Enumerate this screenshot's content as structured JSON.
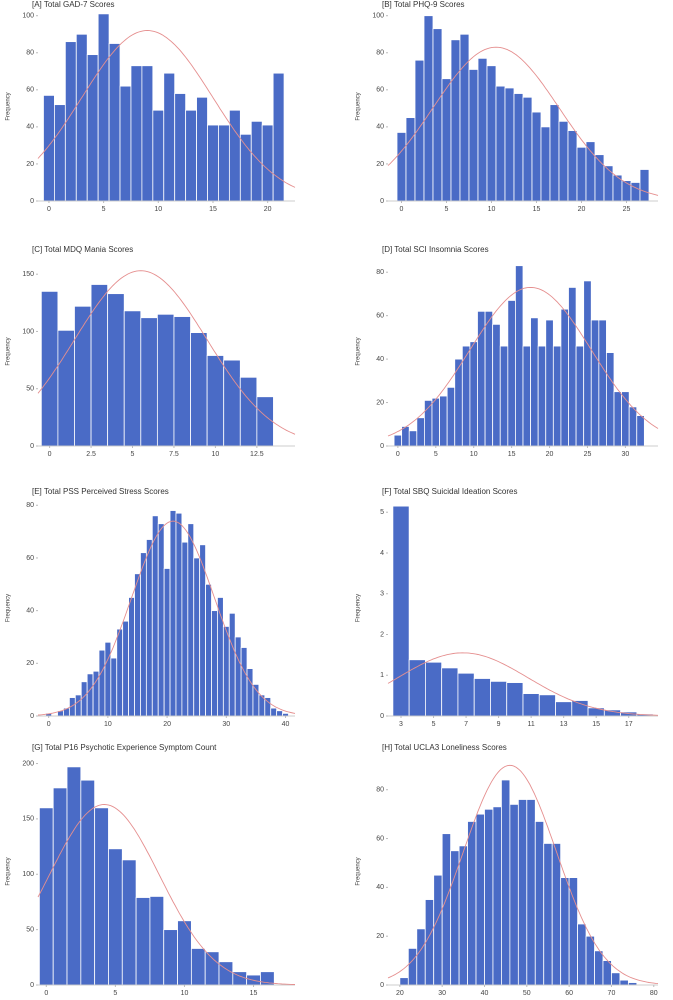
{
  "chart_data": [
    {
      "type": "histogram",
      "title": "[A] Total GAD-7 Scores",
      "ylabel": "Frequency",
      "color": "#4a6bc6",
      "bins": [
        -0.5,
        0.5,
        1.5,
        2.5,
        3.5,
        4.5,
        5.5,
        6.5,
        7.5,
        8.5,
        9.5,
        10.5,
        11.5,
        12.5,
        13.5,
        14.5,
        15.5,
        16.5,
        17.5,
        18.5,
        19.5,
        20.5,
        21.5
      ],
      "values": [
        57,
        52,
        86,
        90,
        79,
        101,
        85,
        62,
        73,
        73,
        49,
        69,
        58,
        49,
        56,
        41,
        41,
        49,
        36,
        43,
        41,
        69
      ],
      "xlim": [
        -1,
        22.5
      ],
      "ylim": [
        0,
        102
      ],
      "xticks": [
        0,
        5,
        10,
        15,
        20
      ],
      "yticks": [
        0,
        20,
        40,
        60,
        80,
        100
      ],
      "normal_fit": {
        "mean": 9,
        "sd": 6,
        "peak": 92,
        "color": "#e58f8f"
      }
    },
    {
      "type": "histogram",
      "title": "[B] Total PHQ-9 Scores",
      "ylabel": "Frequency",
      "color": "#4a6bc6",
      "bins": [
        -0.5,
        0.5,
        1.5,
        2.5,
        3.5,
        4.5,
        5.5,
        6.5,
        7.5,
        8.5,
        9.5,
        10.5,
        11.5,
        12.5,
        13.5,
        14.5,
        15.5,
        16.5,
        17.5,
        18.5,
        19.5,
        20.5,
        21.5,
        22.5,
        23.5,
        24.5,
        25.5,
        26.5,
        27.5
      ],
      "values": [
        37,
        45,
        76,
        100,
        93,
        66,
        87,
        90,
        71,
        77,
        73,
        62,
        61,
        58,
        56,
        48,
        40,
        52,
        43,
        38,
        29,
        32,
        25,
        19,
        14,
        11,
        10,
        17
      ],
      "xlim": [
        -1.5,
        28.5
      ],
      "ylim": [
        0,
        102
      ],
      "xticks": [
        0,
        5,
        10,
        15,
        20,
        25
      ],
      "yticks": [
        0,
        20,
        40,
        60,
        80,
        100
      ],
      "normal_fit": {
        "mean": 10.5,
        "sd": 7,
        "peak": 83,
        "color": "#e58f8f"
      }
    },
    {
      "type": "histogram",
      "title": "[C] Total MDQ Mania Scores",
      "ylabel": "Frequency",
      "color": "#4a6bc6",
      "bins": [
        -0.5,
        0.5,
        1.5,
        2.5,
        3.5,
        4.5,
        5.5,
        6.5,
        7.5,
        8.5,
        9.5,
        10.5,
        11.5,
        12.5,
        13.5
      ],
      "values": [
        135,
        101,
        122,
        141,
        133,
        118,
        112,
        115,
        113,
        99,
        79,
        75,
        60,
        43
      ],
      "xlim": [
        -0.7,
        14.8
      ],
      "ylim": [
        0,
        165
      ],
      "xticks": [
        0,
        2.5,
        5,
        7.5,
        10,
        12.5
      ],
      "yticks": [
        0,
        50,
        100,
        150
      ],
      "normal_fit": {
        "mean": 5.5,
        "sd": 4,
        "peak": 153,
        "color": "#e58f8f"
      }
    },
    {
      "type": "histogram",
      "title": "[D] Total SCI Insomnia Scores",
      "ylabel": "Frequency",
      "color": "#4a6bc6",
      "bins": [
        -0.5,
        0.5,
        1.5,
        2.5,
        3.5,
        4.5,
        5.5,
        6.5,
        7.5,
        8.5,
        9.5,
        10.5,
        11.5,
        12.5,
        13.5,
        14.5,
        15.5,
        16.5,
        17.5,
        18.5,
        19.5,
        20.5,
        21.5,
        22.5,
        23.5,
        24.5,
        25.5,
        26.5,
        27.5,
        28.5,
        29.5,
        30.5,
        31.5,
        32.5
      ],
      "values": [
        5,
        9,
        7,
        13,
        21,
        22,
        23,
        27,
        40,
        46,
        48,
        62,
        62,
        56,
        46,
        67,
        83,
        46,
        59,
        46,
        58,
        46,
        63,
        73,
        46,
        76,
        58,
        58,
        43,
        25,
        25,
        18,
        14
      ],
      "xlim": [
        -1.3,
        34.3
      ],
      "ylim": [
        0,
        87
      ],
      "xticks": [
        0,
        5,
        10,
        15,
        20,
        25,
        30
      ],
      "yticks": [
        0,
        20,
        40,
        60,
        80
      ],
      "normal_fit": {
        "mean": 17.5,
        "sd": 8,
        "peak": 73,
        "color": "#e58f8f"
      }
    },
    {
      "type": "histogram",
      "title": "[E] Total PSS Perceived Stress Scores",
      "ylabel": "Frequency",
      "color": "#4a6bc6",
      "bins": [
        -0.5,
        0.5,
        1.5,
        2.5,
        3.5,
        4.5,
        5.5,
        6.5,
        7.5,
        8.5,
        9.5,
        10.5,
        11.5,
        12.5,
        13.5,
        14.5,
        15.5,
        16.5,
        17.5,
        18.5,
        19.5,
        20.5,
        21.5,
        22.5,
        23.5,
        24.5,
        25.5,
        26.5,
        27.5,
        28.5,
        29.5,
        30.5,
        31.5,
        32.5,
        33.5,
        34.5,
        35.5,
        36.5,
        37.5,
        38.5,
        39.5,
        40.5
      ],
      "values": [
        1,
        0,
        2,
        3,
        7,
        8,
        13,
        16,
        17,
        25,
        28,
        22,
        33,
        36,
        45,
        54,
        62,
        67,
        76,
        73,
        56,
        78,
        77,
        66,
        73,
        60,
        65,
        50,
        40,
        45,
        34,
        39,
        30,
        26,
        18,
        12,
        8,
        7,
        3,
        2,
        1
      ],
      "xlim": [
        -1.8,
        41.6
      ],
      "ylim": [
        0,
        82
      ],
      "xticks": [
        0,
        10,
        20,
        30,
        40
      ],
      "yticks": [
        0,
        20,
        40,
        60,
        80
      ],
      "normal_fit": {
        "mean": 21,
        "sd": 7,
        "peak": 74,
        "color": "#e58f8f"
      }
    },
    {
      "type": "histogram",
      "title": "[F] Total SBQ Suicidal Ideation Scores",
      "ylabel": "Frequency",
      "color": "#4a6bc6",
      "bins": [
        2.5,
        3.5,
        4.5,
        5.5,
        6.5,
        7.5,
        8.5,
        9.5,
        10.5,
        11.5,
        12.5,
        13.5,
        14.5,
        15.5,
        16.5,
        17.5,
        18.5
      ],
      "values": [
        5.15,
        1.38,
        1.32,
        1.18,
        1.05,
        0.92,
        0.85,
        0.82,
        0.55,
        0.52,
        0.35,
        0.38,
        0.2,
        0.15,
        0.1,
        0.05
      ],
      "xlim": [
        2.2,
        18.8
      ],
      "ylim": [
        0,
        5.3
      ],
      "xticks": [
        3,
        5,
        7,
        9,
        11,
        13,
        15,
        17
      ],
      "yticks": [
        0,
        1,
        2,
        3,
        4,
        5
      ],
      "normal_fit": {
        "mean": 6.8,
        "sd": 4,
        "peak": 1.55,
        "color": "#e58f8f"
      }
    },
    {
      "type": "histogram",
      "title": "[G] Total P16 Psychotic Experience Symptom Count",
      "ylabel": "Frequency",
      "color": "#4a6bc6",
      "bins": [
        -0.5,
        0.5,
        1.5,
        2.5,
        3.5,
        4.5,
        5.5,
        6.5,
        7.5,
        8.5,
        9.5,
        10.5,
        11.5,
        12.5,
        13.5,
        14.5,
        15.5,
        16.5
      ],
      "values": [
        160,
        178,
        197,
        185,
        160,
        123,
        113,
        79,
        80,
        50,
        58,
        33,
        30,
        21,
        12,
        9,
        12
      ],
      "xlim": [
        -0.6,
        18
      ],
      "ylim": [
        0,
        205
      ],
      "xticks": [
        0,
        5,
        10,
        15
      ],
      "yticks": [
        0,
        50,
        100,
        150,
        200
      ],
      "normal_fit": {
        "mean": 4.2,
        "sd": 4,
        "peak": 163,
        "color": "#e58f8f"
      }
    },
    {
      "type": "histogram",
      "title": "[H] Total UCLA3 Loneliness Scores",
      "ylabel": "Frequency",
      "color": "#4a6bc6",
      "bins": [
        20,
        22,
        24,
        26,
        28,
        30,
        32,
        34,
        36,
        38,
        40,
        42,
        44,
        46,
        48,
        50,
        52,
        54,
        56,
        58,
        60,
        62,
        64,
        66,
        68,
        70,
        72,
        74,
        76
      ],
      "values": [
        3,
        15,
        23,
        35,
        45,
        62,
        55,
        57,
        67,
        70,
        72,
        73,
        84,
        74,
        76,
        76,
        67,
        58,
        58,
        44,
        44,
        25,
        20,
        14,
        10,
        5,
        2,
        1
      ],
      "xlim": [
        17.2,
        81
      ],
      "ylim": [
        0,
        93
      ],
      "xticks": [
        20,
        30,
        40,
        50,
        60,
        70,
        80
      ],
      "yticks": [
        0,
        20,
        40,
        60,
        80
      ],
      "normal_fit": {
        "mean": 46,
        "sd": 11,
        "peak": 90,
        "color": "#e58f8f"
      }
    }
  ]
}
